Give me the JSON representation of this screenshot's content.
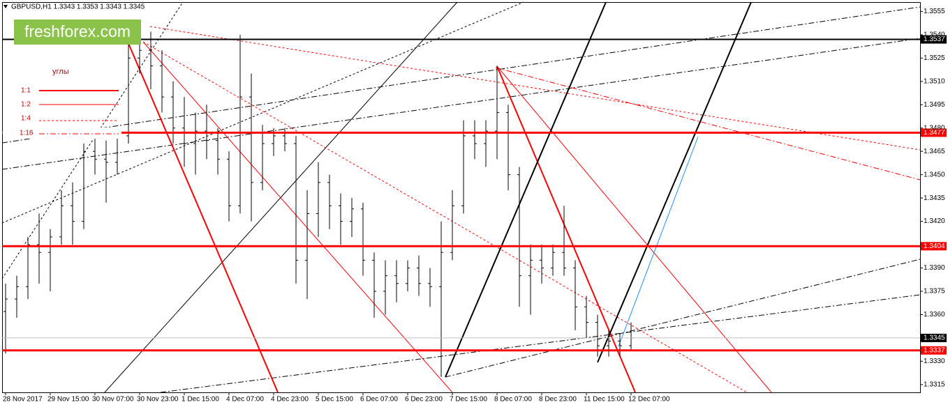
{
  "chart_data": {
    "type": "ohlc",
    "title": "GBPUSD,H1 1.3343 1.3353 1.3343 1.3345",
    "watermark": "freshforex.com",
    "legend_title": "углы",
    "legend_items": [
      "1:1",
      "1:2",
      "1:4",
      "1:16"
    ],
    "color": "#000000",
    "ylim": [
      1.331,
      1.3561
    ],
    "yticks": [
      1.3555,
      {
        "value": 1.354,
        "label": "1.3540"
      },
      1.3525,
      {
        "value": 1.351,
        "label": "1.3510"
      },
      1.3495,
      {
        "value": 1.348,
        "label": "1.3480"
      },
      1.3465,
      {
        "value": 1.345,
        "label": "1.3450"
      },
      1.3435,
      {
        "value": 1.342,
        "label": "1.3420"
      },
      {
        "value": 1.339,
        "label": "1.3390"
      },
      1.3375,
      {
        "value": 1.336,
        "label": "1.3360"
      },
      {
        "value": 1.333,
        "label": "1.3330"
      },
      1.3315
    ],
    "levels": [
      {
        "value": 1.3537,
        "color": "#000000"
      },
      {
        "value": 1.3477,
        "color": "#ff0000"
      },
      {
        "value": 1.3404,
        "color": "#ff0000"
      },
      {
        "value": 1.3337,
        "color": "#ff0000"
      },
      {
        "value": 1.3345,
        "color": "#c0c0c0"
      }
    ],
    "categories": [
      "28 Nov 2017",
      null,
      null,
      null,
      "29 Nov 15:00",
      null,
      null,
      null,
      "30 Nov 07:00",
      null,
      null,
      null,
      "30 Nov 23:00",
      null,
      null,
      null,
      "1 Dec 15:00",
      null,
      null,
      null,
      "4 Dec 07:00",
      null,
      null,
      null,
      "4 Dec 23:00",
      null,
      null,
      null,
      "5 Dec 15:00",
      null,
      null,
      null,
      "6 Dec 07:00",
      null,
      null,
      null,
      "6 Dec 23:00",
      null,
      null,
      null,
      "7 Dec 15:00",
      null,
      null,
      null,
      "8 Dec 07:00",
      null,
      null,
      null,
      "8 Dec 23:00",
      null,
      null,
      null,
      "11 Dec 15:00",
      null,
      null,
      null,
      "12 Dec 07:00"
    ],
    "ohlc": [
      [
        1.3362,
        1.338,
        1.3335,
        1.337
      ],
      [
        1.337,
        1.3385,
        1.3358,
        1.3378
      ],
      [
        1.3378,
        1.341,
        1.337,
        1.3405
      ],
      [
        1.3405,
        1.3425,
        1.338,
        1.34
      ],
      [
        1.34,
        1.3415,
        1.3375,
        1.341
      ],
      [
        1.341,
        1.344,
        1.3405,
        1.343
      ],
      [
        1.343,
        1.3445,
        1.3405,
        1.342
      ],
      [
        1.342,
        1.347,
        1.3415,
        1.3465
      ],
      [
        1.3465,
        1.3475,
        1.345,
        1.346
      ],
      [
        1.346,
        1.3472,
        1.3432,
        1.3458
      ],
      [
        1.3458,
        1.3478,
        1.345,
        1.3475
      ],
      [
        1.3475,
        1.354,
        1.347,
        1.3525
      ],
      [
        1.3525,
        1.3548,
        1.3515,
        1.353
      ],
      [
        1.353,
        1.3542,
        1.3505,
        1.352
      ],
      [
        1.352,
        1.353,
        1.349,
        1.35
      ],
      [
        1.35,
        1.351,
        1.347,
        1.348
      ],
      [
        1.348,
        1.35,
        1.3455,
        1.347
      ],
      [
        1.347,
        1.349,
        1.345,
        1.3478
      ],
      [
        1.3478,
        1.3495,
        1.346,
        1.3472
      ],
      [
        1.3472,
        1.348,
        1.345,
        1.346
      ],
      [
        1.346,
        1.3465,
        1.342,
        1.343
      ],
      [
        1.343,
        1.354,
        1.3425,
        1.35
      ],
      [
        1.35,
        1.3515,
        1.342,
        1.3445
      ],
      [
        1.3445,
        1.3482,
        1.344,
        1.347
      ],
      [
        1.347,
        1.348,
        1.3462,
        1.3475
      ],
      [
        1.3475,
        1.348,
        1.3465,
        1.347
      ],
      [
        1.347,
        1.3475,
        1.338,
        1.3395
      ],
      [
        1.3395,
        1.344,
        1.337,
        1.3425
      ],
      [
        1.3425,
        1.3458,
        1.341,
        1.3445
      ],
      [
        1.3445,
        1.345,
        1.3415,
        1.343
      ],
      [
        1.343,
        1.3438,
        1.3405,
        1.342
      ],
      [
        1.342,
        1.3435,
        1.341,
        1.3428
      ],
      [
        1.3428,
        1.3432,
        1.3385,
        1.3395
      ],
      [
        1.3395,
        1.34,
        1.3358,
        1.3375
      ],
      [
        1.3375,
        1.3395,
        1.336,
        1.3385
      ],
      [
        1.3385,
        1.3395,
        1.3368,
        1.338
      ],
      [
        1.338,
        1.3395,
        1.3375,
        1.339
      ],
      [
        1.339,
        1.3398,
        1.3372,
        1.338
      ],
      [
        1.338,
        1.339,
        1.3365,
        1.3378
      ],
      [
        1.3378,
        1.342,
        1.332,
        1.34
      ],
      [
        1.34,
        1.344,
        1.3395,
        1.343
      ],
      [
        1.343,
        1.3485,
        1.3425,
        1.3475
      ],
      [
        1.3475,
        1.3485,
        1.346,
        1.347
      ],
      [
        1.347,
        1.3485,
        1.3455,
        1.3478
      ],
      [
        1.3478,
        1.352,
        1.346,
        1.349
      ],
      [
        1.349,
        1.3495,
        1.344,
        1.345
      ],
      [
        1.345,
        1.3455,
        1.3365,
        1.3385
      ],
      [
        1.3385,
        1.3405,
        1.336,
        1.3395
      ],
      [
        1.3395,
        1.3405,
        1.338,
        1.339
      ],
      [
        1.339,
        1.3405,
        1.3385,
        1.34
      ],
      [
        1.34,
        1.343,
        1.3385,
        1.339
      ],
      [
        1.339,
        1.3395,
        1.335,
        1.3365
      ],
      [
        1.3365,
        1.3372,
        1.3345,
        1.3355
      ],
      [
        1.3355,
        1.336,
        1.3333,
        1.334
      ],
      [
        1.334,
        1.335,
        1.3333,
        1.3343
      ],
      [
        1.3343,
        1.3348,
        1.3333,
        1.334
      ],
      [
        1.334,
        1.3355,
        1.3337,
        1.3345
      ]
    ]
  }
}
